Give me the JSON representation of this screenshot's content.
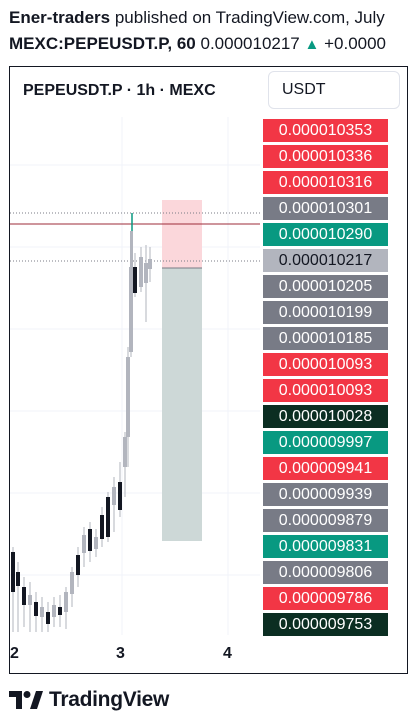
{
  "header": {
    "author": "Ener-traders",
    "published_text": " published on TradingView.com, July",
    "symbol_interval": "MEXC:PEPEUSDT.P, 60",
    "last_price": " 0.000010217",
    "change_arrow": "▲",
    "change": " +0.0000"
  },
  "chart": {
    "title": "PEPEUSDT.P · 1h · MEXC",
    "currency": "USDT",
    "x_ticks": [
      "2",
      "3",
      "4"
    ]
  },
  "price_labels": [
    {
      "value": "0.000010353",
      "color": "#f23645",
      "text_color": "#ffffff"
    },
    {
      "value": "0.000010336",
      "color": "#f23645",
      "text_color": "#ffffff"
    },
    {
      "value": "0.000010316",
      "color": "#f23645",
      "text_color": "#ffffff"
    },
    {
      "value": "0.000010301",
      "color": "#787b86",
      "text_color": "#ffffff"
    },
    {
      "value": "0.000010290",
      "color": "#089981",
      "text_color": "#ffffff"
    },
    {
      "value": "0.000010217",
      "color": "#b2b5be",
      "text_color": "#131722"
    },
    {
      "value": "0.000010205",
      "color": "#787b86",
      "text_color": "#ffffff"
    },
    {
      "value": "0.000010199",
      "color": "#787b86",
      "text_color": "#ffffff"
    },
    {
      "value": "0.000010185",
      "color": "#787b86",
      "text_color": "#ffffff"
    },
    {
      "value": "0.000010093",
      "color": "#f23645",
      "text_color": "#ffffff"
    },
    {
      "value": "0.000010093",
      "color": "#f23645",
      "text_color": "#ffffff"
    },
    {
      "value": "0.000010028",
      "color": "#0b2e22",
      "text_color": "#ffffff"
    },
    {
      "value": "0.000009997",
      "color": "#089981",
      "text_color": "#ffffff"
    },
    {
      "value": "0.000009941",
      "color": "#f23645",
      "text_color": "#ffffff"
    },
    {
      "value": "0.000009939",
      "color": "#787b86",
      "text_color": "#ffffff"
    },
    {
      "value": "0.000009879",
      "color": "#787b86",
      "text_color": "#ffffff"
    },
    {
      "value": "0.000009831",
      "color": "#089981",
      "text_color": "#ffffff"
    },
    {
      "value": "0.000009806",
      "color": "#787b86",
      "text_color": "#ffffff"
    },
    {
      "value": "0.000009786",
      "color": "#f23645",
      "text_color": "#ffffff"
    },
    {
      "value": "0.000009753",
      "color": "#0b2e22",
      "text_color": "#ffffff"
    }
  ],
  "branding": {
    "wordmark": "TradingView"
  },
  "colors": {
    "up": "#089981",
    "down": "#f23645",
    "candle_body": "#131722",
    "wick": "#b2b5be",
    "stop_zone": "#f7c5cb",
    "target_zone": "#c6d0cf"
  }
}
